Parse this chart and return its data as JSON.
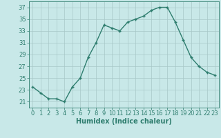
{
  "x": [
    0,
    1,
    2,
    3,
    4,
    5,
    6,
    7,
    8,
    9,
    10,
    11,
    12,
    13,
    14,
    15,
    16,
    17,
    18,
    19,
    20,
    21,
    22,
    23
  ],
  "y": [
    23.5,
    22.5,
    21.5,
    21.5,
    21.0,
    23.5,
    25.0,
    28.5,
    31.0,
    34.0,
    33.5,
    33.0,
    34.5,
    35.0,
    35.5,
    36.5,
    37.0,
    37.0,
    34.5,
    31.5,
    28.5,
    27.0,
    26.0,
    25.5
  ],
  "line_color": "#2e7d6e",
  "marker": "+",
  "bg_color": "#c8e8e8",
  "grid_color": "#a8c8c8",
  "axis_color": "#2e7d6e",
  "xlabel": "Humidex (Indice chaleur)",
  "xlim": [
    -0.5,
    23.5
  ],
  "ylim": [
    20.0,
    38.0
  ],
  "yticks": [
    21,
    23,
    25,
    27,
    29,
    31,
    33,
    35,
    37
  ],
  "xticks": [
    0,
    1,
    2,
    3,
    4,
    5,
    6,
    7,
    8,
    9,
    10,
    11,
    12,
    13,
    14,
    15,
    16,
    17,
    18,
    19,
    20,
    21,
    22,
    23
  ],
  "label_fontsize": 7,
  "tick_fontsize": 6,
  "linewidth": 1.0,
  "markersize": 3.5,
  "markeredgewidth": 1.0
}
